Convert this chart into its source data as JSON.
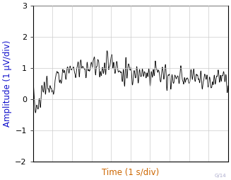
{
  "title": "",
  "xlabel": "Time (1 s/div)",
  "ylabel": "Amplitude (1 µV/div)",
  "xlabel_color": "#CC6600",
  "ylabel_color": "#1111CC",
  "xlim": [
    0,
    10
  ],
  "ylim": [
    -2,
    3
  ],
  "yticks": [
    -2,
    -1,
    0,
    1,
    2,
    3
  ],
  "grid_color": "#CCCCCC",
  "line_color": "#000000",
  "background_color": "#FFFFFF",
  "watermark": "G/14",
  "watermark_color": "#AAAACC",
  "seed": 7,
  "num_points": 1500,
  "xlabel_fontsize": 8.5,
  "ylabel_fontsize": 8.5,
  "tick_fontsize": 8
}
